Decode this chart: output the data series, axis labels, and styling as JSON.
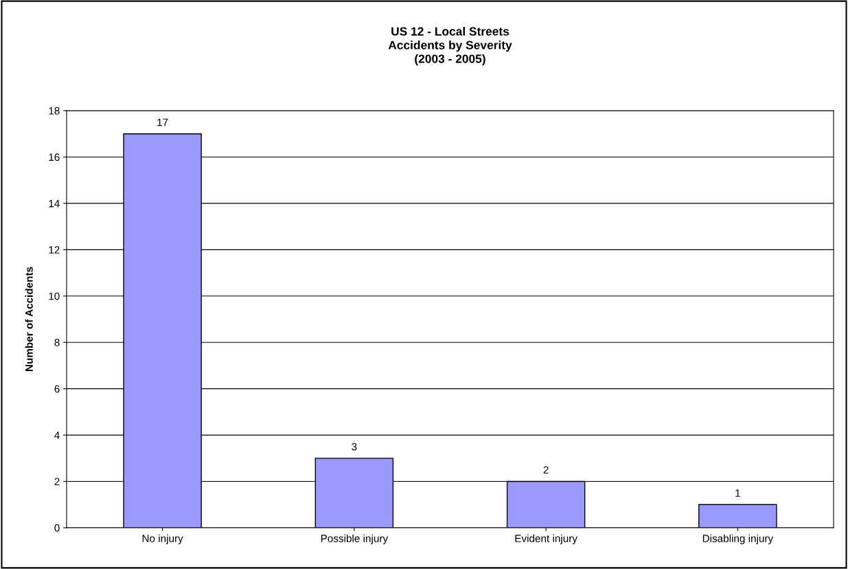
{
  "chart_data": {
    "type": "bar",
    "title": "US 12 - Local Streets\nAccidents by Severity\n(2003 - 2005)",
    "ylabel": "Number of Accidents",
    "categories": [
      "No injury",
      "Possible injury",
      "Evident injury",
      "Disabling injury"
    ],
    "values": [
      17,
      3,
      2,
      1
    ],
    "color": "#9999ff",
    "data_labels": true,
    "ylim": [
      0,
      18
    ],
    "yticks": [
      0,
      2,
      4,
      6,
      8,
      10,
      12,
      14,
      16,
      18
    ],
    "grid": "y",
    "legend": false
  }
}
